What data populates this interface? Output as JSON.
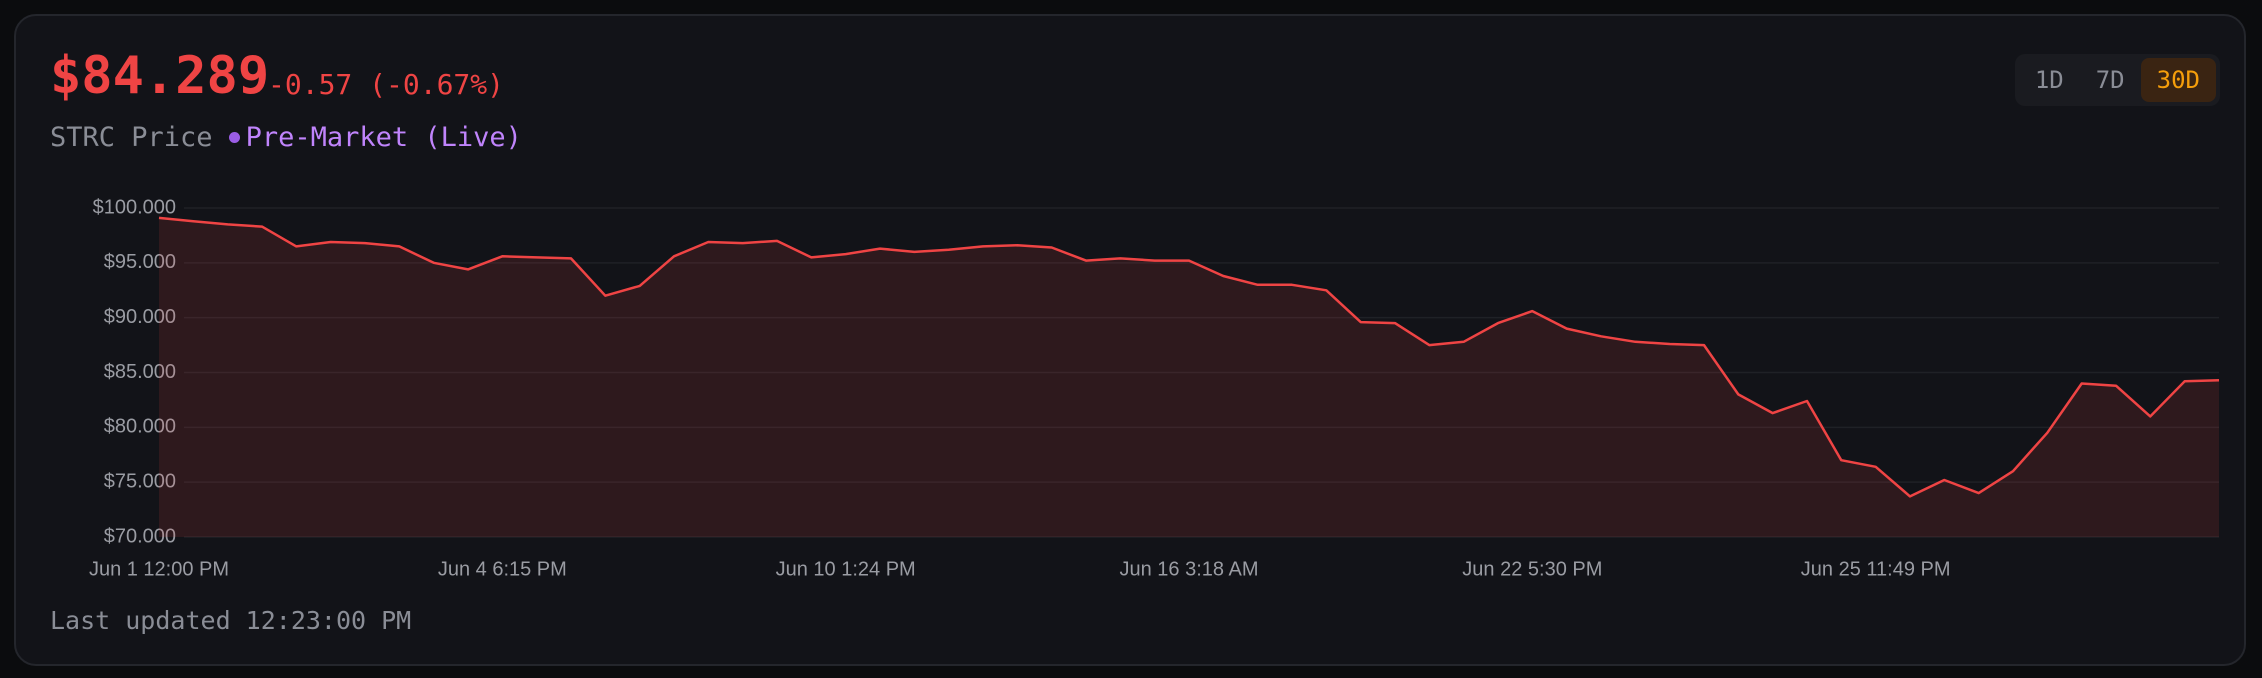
{
  "header": {
    "price": "$84.289",
    "change": "-0.57 (-0.67%)",
    "label": "STRC Price",
    "status": "Pre-Market (Live)"
  },
  "range_buttons": [
    "1D",
    "7D",
    "30D"
  ],
  "active_range": 2,
  "footer": "Last updated 12:23:00 PM",
  "chart_data": {
    "type": "area",
    "color": "#ef4444",
    "grid": true,
    "categories": [
      "Jun 1 12:00 PM",
      null,
      null,
      null,
      null,
      null,
      null,
      null,
      null,
      null,
      "Jun 4 6:15 PM",
      null,
      null,
      null,
      null,
      null,
      null,
      null,
      null,
      null,
      "Jun 10 1:24 PM",
      null,
      null,
      null,
      null,
      null,
      null,
      null,
      null,
      null,
      "Jun 16 3:18 AM",
      null,
      null,
      null,
      null,
      null,
      null,
      null,
      null,
      null,
      "Jun 22 5:30 PM",
      null,
      null,
      null,
      null,
      null,
      null,
      null,
      null,
      null,
      "Jun 25 11:49 PM",
      null,
      null,
      null,
      null,
      null,
      null,
      null,
      null,
      null,
      null
    ],
    "values": [
      99.1,
      98.8,
      98.5,
      98.3,
      96.5,
      96.9,
      96.8,
      96.5,
      95.0,
      94.4,
      95.6,
      95.5,
      95.4,
      92.0,
      92.9,
      95.6,
      96.9,
      96.8,
      97.0,
      95.5,
      95.8,
      96.3,
      96.0,
      96.2,
      96.5,
      96.6,
      96.4,
      95.2,
      95.4,
      95.2,
      95.2,
      93.8,
      93.0,
      93.0,
      92.5,
      89.6,
      89.5,
      87.5,
      87.8,
      89.5,
      90.6,
      89.0,
      88.3,
      87.8,
      87.6,
      87.5,
      83.0,
      81.3,
      82.4,
      77.0,
      76.4,
      73.7,
      75.2,
      74.0,
      76.0,
      79.5,
      84.0,
      83.8,
      81.0,
      84.2,
      84.3
    ],
    "ylim": [
      70,
      100
    ],
    "yticks": [
      {
        "value": 70,
        "label": "$70.000"
      },
      {
        "value": 75,
        "label": "$75.000"
      },
      {
        "value": 80,
        "label": "$80.000"
      },
      {
        "value": 85,
        "label": "$85.000"
      },
      {
        "value": 90,
        "label": "$90.000"
      },
      {
        "value": 95,
        "label": "$95.000"
      },
      {
        "value": 100,
        "label": "$100.000"
      }
    ]
  }
}
